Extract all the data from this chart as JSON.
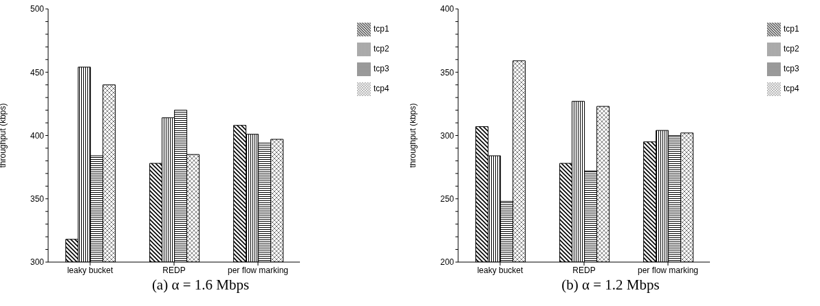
{
  "chart_data": [
    {
      "type": "bar",
      "title": "(a) α = 1.6 Mbps",
      "ylabel": "throughput (kbps)",
      "categories": [
        "leaky bucket",
        "REDP",
        "per flow marking"
      ],
      "series": [
        {
          "name": "tcp1",
          "color": "#000000",
          "values": [
            318,
            378,
            408
          ]
        },
        {
          "name": "tcp2",
          "color": "#000000",
          "values": [
            454,
            414,
            401
          ]
        },
        {
          "name": "tcp3",
          "color": "#000000",
          "values": [
            384,
            420,
            394
          ]
        },
        {
          "name": "tcp4",
          "color": "#000000",
          "values": [
            440,
            385,
            397
          ]
        }
      ],
      "ylim": [
        300,
        500
      ],
      "yticks": [
        300,
        {
          "value": 310,
          "label": null
        },
        {
          "value": 320,
          "label": null
        },
        {
          "value": 330,
          "label": null
        },
        {
          "value": 340,
          "label": null
        },
        350,
        {
          "value": 360,
          "label": null
        },
        {
          "value": 370,
          "label": null
        },
        {
          "value": 380,
          "label": null
        },
        {
          "value": 390,
          "label": null
        },
        400,
        {
          "value": 410,
          "label": null
        },
        {
          "value": 420,
          "label": null
        },
        {
          "value": 430,
          "label": null
        },
        {
          "value": 440,
          "label": null
        },
        450,
        {
          "value": 460,
          "label": null
        },
        {
          "value": 470,
          "label": null
        },
        {
          "value": 480,
          "label": null
        },
        {
          "value": 490,
          "label": null
        },
        500
      ],
      "grid": false,
      "legend": "top right"
    },
    {
      "type": "bar",
      "title": "(b) α = 1.2 Mbps",
      "ylabel": "throughput (kbps)",
      "categories": [
        "leaky bucket",
        "REDP",
        "per flow marking"
      ],
      "series": [
        {
          "name": "tcp1",
          "color": "#000000",
          "values": [
            307,
            278,
            295
          ]
        },
        {
          "name": "tcp2",
          "color": "#000000",
          "values": [
            284,
            327,
            304
          ]
        },
        {
          "name": "tcp3",
          "color": "#000000",
          "values": [
            248,
            272,
            300
          ]
        },
        {
          "name": "tcp4",
          "color": "#000000",
          "values": [
            359,
            323,
            302
          ]
        }
      ],
      "ylim": [
        200,
        400
      ],
      "yticks": [
        200,
        {
          "value": 210,
          "label": null
        },
        {
          "value": 220,
          "label": null
        },
        {
          "value": 230,
          "label": null
        },
        {
          "value": 240,
          "label": null
        },
        250,
        {
          "value": 260,
          "label": null
        },
        {
          "value": 270,
          "label": null
        },
        {
          "value": 280,
          "label": null
        },
        {
          "value": 290,
          "label": null
        },
        300,
        {
          "value": 310,
          "label": null
        },
        {
          "value": 320,
          "label": null
        },
        {
          "value": 330,
          "label": null
        },
        {
          "value": 340,
          "label": null
        },
        350,
        {
          "value": 360,
          "label": null
        },
        {
          "value": 370,
          "label": null
        },
        {
          "value": 380,
          "label": null
        },
        {
          "value": 390,
          "label": null
        },
        400
      ],
      "grid": false,
      "legend": "top right"
    }
  ]
}
